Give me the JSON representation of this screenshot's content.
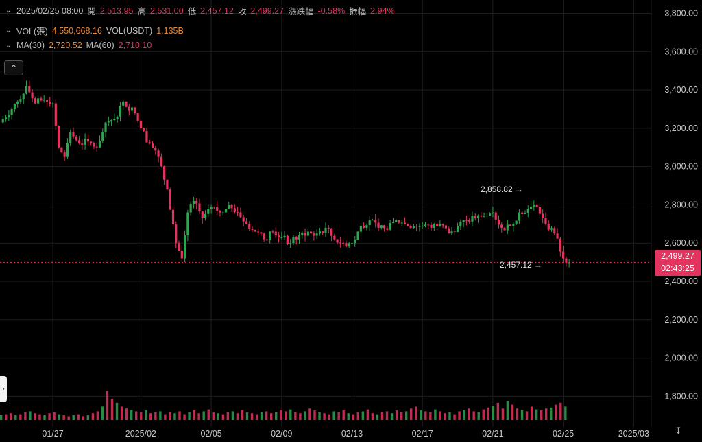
{
  "legend": {
    "row1": {
      "datetime": "2025/02/25 08:00",
      "open_label": "開",
      "open": "2,513.95",
      "high_label": "高",
      "high": "2,531.00",
      "low_label": "低",
      "low": "2,457.12",
      "close_label": "收",
      "close": "2,499.27",
      "change_label": "漲跌幅",
      "change": "-0.58%",
      "amplitude_label": "振幅",
      "amplitude": "2.94%"
    },
    "row2": {
      "vol_label": "VOL(張)",
      "vol": "4,550,668.16",
      "vol_usdt_label": "VOL(USDT)",
      "vol_usdt": "1.135B"
    },
    "row3": {
      "ma30_label": "MA(30)",
      "ma30": "2,720.52",
      "ma60_label": "MA(60)",
      "ma60": "2,710.10"
    }
  },
  "current_price": {
    "price": "2,499.27",
    "countdown": "02:43:25"
  },
  "annotations": {
    "high_marker": "2,858.82",
    "low_marker": "2,457.12"
  },
  "colors": {
    "up": "#2ea44f",
    "down": "#e2345e",
    "background": "#000000",
    "grid": "#1e1e1e"
  },
  "icons": {
    "collapse": "chevron-up-icon",
    "side_handle": "chevron-right-icon",
    "axis_settings": "axis-scale-icon"
  },
  "chart_data": {
    "type": "candlestick",
    "y_ticks": [
      "3,800.00",
      "3,600.00",
      "3,400.00",
      "3,200.00",
      "3,000.00",
      "2,800.00",
      "2,600.00",
      "2,400.00",
      "2,200.00",
      "2,000.00",
      "1,800.00"
    ],
    "y_tick_values": [
      3800,
      3600,
      3400,
      3200,
      3000,
      2800,
      2600,
      2400,
      2200,
      2000,
      1800
    ],
    "ylim": [
      1640,
      3870
    ],
    "x_ticks": [
      "01/27",
      "2025/02",
      "02/05",
      "02/09",
      "02/13",
      "02/17",
      "02/21",
      "02/25",
      "2025/03"
    ],
    "x_tick_dates": [
      "2025-01-27",
      "2025-02-01",
      "2025-02-05",
      "2025-02-09",
      "2025-02-13",
      "2025-02-17",
      "2025-02-21",
      "2025-02-25",
      "2025-03-01"
    ],
    "candle_interval": "4h",
    "series": [
      {
        "name": "price",
        "points": [
          [
            "2025-01-24",
            3230
          ],
          [
            "2025-01-25",
            3340
          ],
          [
            "2025-01-25 12:00",
            3420
          ],
          [
            "2025-01-26",
            3330
          ],
          [
            "2025-01-26 12:00",
            3350
          ],
          [
            "2025-01-27",
            3330
          ],
          [
            "2025-01-27 08:00",
            3100
          ],
          [
            "2025-01-27 16:00",
            3050
          ],
          [
            "2025-01-28",
            3180
          ],
          [
            "2025-01-28 12:00",
            3120
          ],
          [
            "2025-01-29",
            3130
          ],
          [
            "2025-01-29 12:00",
            3100
          ],
          [
            "2025-01-30",
            3230
          ],
          [
            "2025-01-30 12:00",
            3250
          ],
          [
            "2025-01-31",
            3340
          ],
          [
            "2025-01-31 16:00",
            3280
          ],
          [
            "2025-02-01",
            3200
          ],
          [
            "2025-02-01 12:00",
            3120
          ],
          [
            "2025-02-02",
            3050
          ],
          [
            "2025-02-02 12:00",
            2880
          ],
          [
            "2025-02-03",
            2600
          ],
          [
            "2025-02-03 08:00",
            2520
          ],
          [
            "2025-02-03 16:00",
            2760
          ],
          [
            "2025-02-04",
            2820
          ],
          [
            "2025-02-04 12:00",
            2730
          ],
          [
            "2025-02-05",
            2790
          ],
          [
            "2025-02-05 12:00",
            2760
          ],
          [
            "2025-02-06",
            2800
          ],
          [
            "2025-02-06 12:00",
            2760
          ],
          [
            "2025-02-07",
            2700
          ],
          [
            "2025-02-07 12:00",
            2660
          ],
          [
            "2025-02-08",
            2620
          ],
          [
            "2025-02-08 12:00",
            2660
          ],
          [
            "2025-02-09",
            2630
          ],
          [
            "2025-02-09 12:00",
            2600
          ],
          [
            "2025-02-10",
            2640
          ],
          [
            "2025-02-10 12:00",
            2660
          ],
          [
            "2025-02-11",
            2650
          ],
          [
            "2025-02-11 12:00",
            2680
          ],
          [
            "2025-02-12",
            2620
          ],
          [
            "2025-02-12 12:00",
            2600
          ],
          [
            "2025-02-13",
            2600
          ],
          [
            "2025-02-13 12:00",
            2690
          ],
          [
            "2025-02-14",
            2720
          ],
          [
            "2025-02-14 12:00",
            2680
          ],
          [
            "2025-02-15",
            2670
          ],
          [
            "2025-02-15 12:00",
            2720
          ],
          [
            "2025-02-16",
            2700
          ],
          [
            "2025-02-16 12:00",
            2690
          ],
          [
            "2025-02-17",
            2690
          ],
          [
            "2025-02-17 12:00",
            2680
          ],
          [
            "2025-02-18",
            2700
          ],
          [
            "2025-02-18 12:00",
            2650
          ],
          [
            "2025-02-19",
            2690
          ],
          [
            "2025-02-19 12:00",
            2720
          ],
          [
            "2025-02-20",
            2730
          ],
          [
            "2025-02-20 12:00",
            2740
          ],
          [
            "2025-02-21",
            2760
          ],
          [
            "2025-02-21 12:00",
            2680
          ],
          [
            "2025-02-22",
            2690
          ],
          [
            "2025-02-22 12:00",
            2760
          ],
          [
            "2025-02-23",
            2780
          ],
          [
            "2025-02-23 12:00",
            2790
          ],
          [
            "2025-02-24",
            2700
          ],
          [
            "2025-02-24 12:00",
            2650
          ],
          [
            "2025-02-25",
            2520
          ],
          [
            "2025-02-25 08:00",
            2499
          ]
        ]
      },
      {
        "name": "VOL",
        "values": [
          5,
          6,
          7,
          5,
          6,
          8,
          9,
          7,
          6,
          5,
          7,
          8,
          6,
          5,
          4,
          5,
          6,
          4,
          5,
          7,
          9,
          14,
          30,
          22,
          18,
          14,
          12,
          10,
          9,
          8,
          10,
          7,
          8,
          9,
          6,
          8,
          7,
          9,
          6,
          8,
          10,
          7,
          9,
          11,
          8,
          7,
          6,
          8,
          9,
          7,
          10,
          8,
          7,
          6,
          8,
          9,
          7,
          8,
          10,
          9,
          11,
          8,
          7,
          9,
          12,
          10,
          8,
          7,
          6,
          9,
          8,
          10,
          7,
          6,
          8,
          9,
          11,
          7,
          6,
          8,
          9,
          7,
          10,
          8,
          9,
          12,
          14,
          10,
          9,
          8,
          11,
          9,
          7,
          8,
          6,
          9,
          10,
          12,
          9,
          8,
          11,
          13,
          15,
          18,
          12,
          20,
          16,
          12,
          10,
          9,
          14,
          11,
          10,
          12,
          13,
          16,
          18,
          14
        ]
      }
    ]
  }
}
